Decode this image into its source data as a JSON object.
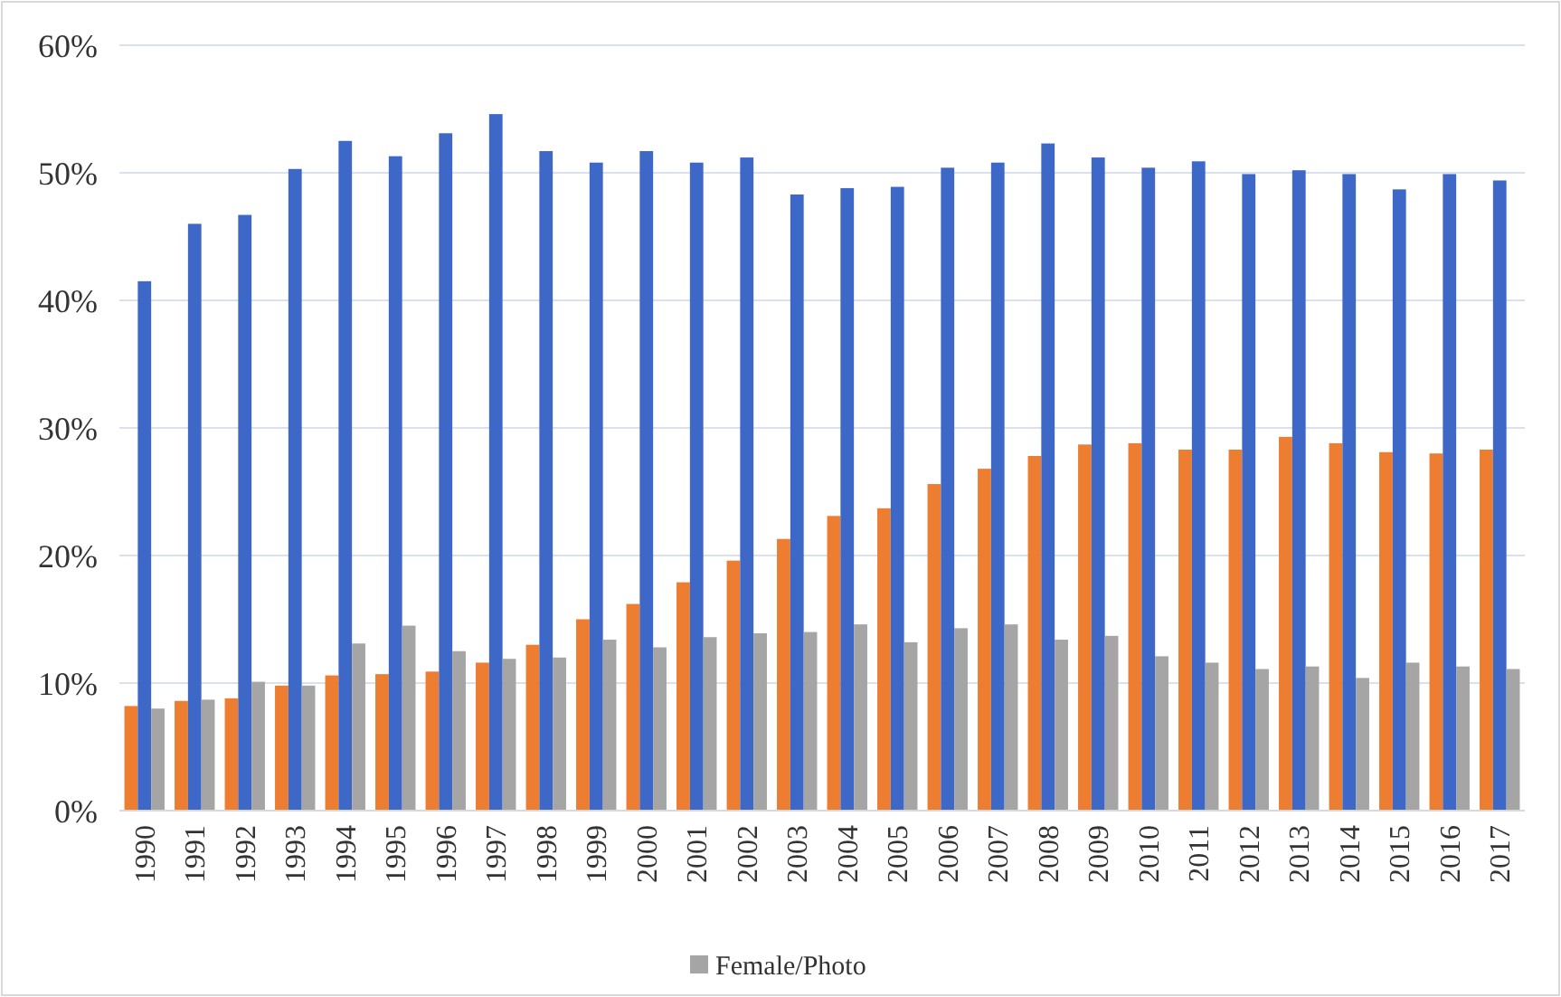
{
  "chart_data": {
    "type": "bar",
    "categories": [
      "1990",
      "1991",
      "1992",
      "1993",
      "1994",
      "1995",
      "1996",
      "1997",
      "1998",
      "1999",
      "2000",
      "2001",
      "2002",
      "2003",
      "2004",
      "2005",
      "2006",
      "2007",
      "2008",
      "2009",
      "2010",
      "2011",
      "2012",
      "2013",
      "2014",
      "2015",
      "2016",
      "2017"
    ],
    "series": [
      {
        "color": "#ed7d31",
        "values": [
          8.2,
          8.6,
          8.8,
          9.8,
          10.6,
          10.7,
          10.9,
          11.6,
          13.0,
          15.0,
          16.2,
          17.9,
          19.6,
          21.3,
          23.1,
          23.7,
          25.6,
          26.8,
          27.8,
          28.7,
          28.8,
          28.3,
          28.3,
          29.3,
          28.8,
          28.1,
          28.0,
          28.3
        ]
      },
      {
        "color": "#3d68c8",
        "values": [
          41.5,
          46.0,
          46.7,
          50.3,
          52.5,
          51.3,
          53.1,
          54.6,
          51.7,
          50.8,
          51.7,
          50.8,
          51.2,
          48.3,
          48.8,
          48.9,
          50.4,
          50.8,
          52.3,
          51.2,
          50.4,
          50.9,
          49.9,
          50.2,
          49.9,
          48.7,
          49.9,
          49.4
        ]
      },
      {
        "name": "Female/Photo",
        "color": "#a5a5a5",
        "values": [
          8.0,
          8.7,
          10.1,
          9.8,
          13.1,
          14.5,
          12.5,
          11.9,
          12.0,
          13.4,
          12.8,
          13.6,
          13.9,
          14.0,
          14.6,
          13.2,
          14.3,
          14.6,
          13.4,
          13.7,
          12.1,
          11.6,
          11.1,
          11.3,
          10.4,
          11.6,
          11.3,
          11.1
        ]
      }
    ],
    "ylim": [
      0,
      60
    ],
    "yticks": [
      {
        "value": 0,
        "label": "0%"
      },
      {
        "value": 10,
        "label": "10%"
      },
      {
        "value": 20,
        "label": "20%"
      },
      {
        "value": 30,
        "label": "30%"
      },
      {
        "value": 40,
        "label": "40%"
      },
      {
        "value": 50,
        "label": "50%"
      },
      {
        "value": 60,
        "label": "60%"
      }
    ],
    "grid": "y",
    "legend": "bottom"
  }
}
